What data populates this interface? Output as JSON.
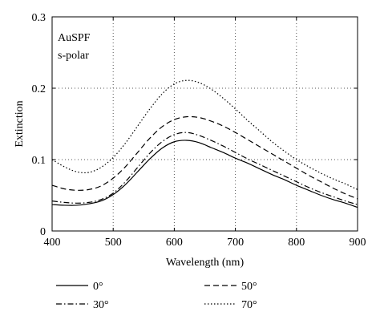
{
  "chart_data": {
    "type": "line",
    "title": "",
    "annotation": [
      "AuSPF",
      "s-polar"
    ],
    "xlabel": "Wavelength (nm)",
    "ylabel": "Extinction",
    "xlim": [
      400,
      900
    ],
    "ylim": [
      0,
      0.3
    ],
    "xticks": [
      400,
      500,
      600,
      700,
      800,
      900
    ],
    "yticks": [
      0,
      0.1,
      0.2,
      0.3
    ],
    "ytick_labels": [
      "0",
      "0.1",
      "0.2",
      "0.3"
    ],
    "grid": "dotted",
    "legend_position": "bottom",
    "series": [
      {
        "name": "0°",
        "line_style": "solid",
        "x": [
          400,
          420,
          440,
          460,
          480,
          500,
          520,
          540,
          560,
          580,
          600,
          620,
          640,
          660,
          680,
          700,
          720,
          740,
          760,
          780,
          800,
          820,
          840,
          860,
          880,
          900
        ],
        "values": [
          0.037,
          0.036,
          0.036,
          0.038,
          0.042,
          0.051,
          0.065,
          0.083,
          0.101,
          0.116,
          0.125,
          0.127,
          0.124,
          0.117,
          0.11,
          0.102,
          0.095,
          0.087,
          0.079,
          0.072,
          0.064,
          0.057,
          0.05,
          0.044,
          0.039,
          0.033
        ]
      },
      {
        "name": "30°",
        "line_style": "dashdot",
        "x": [
          400,
          420,
          440,
          460,
          480,
          500,
          520,
          540,
          560,
          580,
          600,
          620,
          640,
          660,
          680,
          700,
          720,
          740,
          760,
          780,
          800,
          820,
          840,
          860,
          880,
          900
        ],
        "values": [
          0.042,
          0.04,
          0.039,
          0.04,
          0.044,
          0.053,
          0.069,
          0.089,
          0.109,
          0.125,
          0.135,
          0.138,
          0.134,
          0.127,
          0.119,
          0.11,
          0.101,
          0.093,
          0.085,
          0.077,
          0.069,
          0.061,
          0.054,
          0.048,
          0.042,
          0.037
        ]
      },
      {
        "name": "50°",
        "line_style": "dashed",
        "x": [
          400,
          420,
          440,
          460,
          480,
          500,
          520,
          540,
          560,
          580,
          600,
          620,
          640,
          660,
          680,
          700,
          720,
          740,
          760,
          780,
          800,
          820,
          840,
          860,
          880,
          900
        ],
        "values": [
          0.064,
          0.059,
          0.057,
          0.058,
          0.063,
          0.074,
          0.09,
          0.11,
          0.13,
          0.146,
          0.156,
          0.16,
          0.159,
          0.154,
          0.147,
          0.138,
          0.128,
          0.118,
          0.108,
          0.098,
          0.088,
          0.078,
          0.069,
          0.06,
          0.052,
          0.045
        ]
      },
      {
        "name": "70°",
        "line_style": "dotted",
        "x": [
          400,
          420,
          440,
          460,
          480,
          500,
          520,
          540,
          560,
          580,
          600,
          620,
          640,
          660,
          680,
          700,
          720,
          740,
          760,
          780,
          800,
          820,
          840,
          860,
          880,
          900
        ],
        "values": [
          0.1,
          0.09,
          0.083,
          0.082,
          0.089,
          0.103,
          0.123,
          0.147,
          0.171,
          0.192,
          0.206,
          0.211,
          0.208,
          0.199,
          0.186,
          0.171,
          0.155,
          0.14,
          0.125,
          0.112,
          0.1,
          0.09,
          0.081,
          0.073,
          0.066,
          0.058
        ]
      }
    ]
  }
}
